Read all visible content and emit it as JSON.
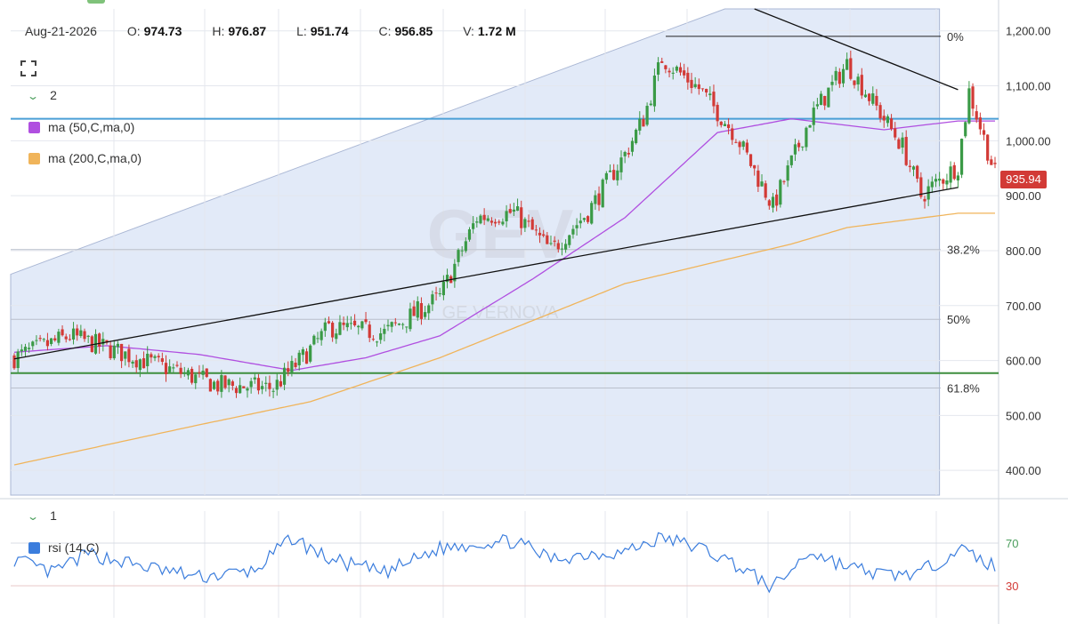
{
  "ohlc": {
    "date": "Aug-21-2026",
    "open_label": "O:",
    "open": "974.73",
    "high_label": "H:",
    "high": "976.87",
    "low_label": "L:",
    "low": "951.74",
    "close_label": "C:",
    "close": "956.85",
    "volume_label": "V:",
    "volume": "1.72 M"
  },
  "toolbar": {
    "fullscreen_icon": "expand-icon"
  },
  "main_pane": {
    "indicator_count": "2",
    "legend": [
      {
        "label": "ma (50,C,ma,0)",
        "color": "#b04fe0"
      },
      {
        "label": "ma (200,C,ma,0)",
        "color": "#f0b45a"
      }
    ],
    "watermark_symbol": "GEV",
    "watermark_name": "GE VERNOVA"
  },
  "rsi_pane": {
    "indicator_count": "1",
    "legend": [
      {
        "label": "rsi (14,C)",
        "color": "#3b7ddd"
      }
    ]
  },
  "current_price": "935.94",
  "colors": {
    "up": "#3a9a46",
    "down": "#d23a36",
    "ma50": "#b04fe0",
    "ma200": "#f0b45a",
    "rsi": "#3b7ddd",
    "resistance": "#4a9fd6",
    "support": "#3e8e3e"
  },
  "chart_data": {
    "type": "candlestick",
    "y_axis_ticks": [
      "1,200.00",
      "1,100.00",
      "1,000.00",
      "900.00",
      "800.00",
      "700.00",
      "600.00",
      "500.00",
      "400.00"
    ],
    "y_axis_values": [
      1200,
      1100,
      1000,
      900,
      800,
      700,
      600,
      500,
      400
    ],
    "ylim": [
      355,
      1240
    ],
    "fibonacci": [
      {
        "label": "0%",
        "value": 1190
      },
      {
        "label": "38.2%",
        "value": 802
      },
      {
        "label": "50%",
        "value": 675
      },
      {
        "label": "61.8%",
        "value": 550
      }
    ],
    "horizontal_levels": [
      {
        "name": "resistance",
        "value": 1040
      },
      {
        "name": "support",
        "value": 577
      }
    ],
    "trendlines": [
      {
        "name": "rising-support",
        "points": [
          [
            0,
            603
          ],
          [
            255,
            915
          ]
        ]
      },
      {
        "name": "falling-resistance",
        "points": [
          [
            200,
            1240
          ],
          [
            255,
            1093
          ]
        ]
      },
      {
        "name": "channel-upper",
        "points": [
          [
            0,
            757
          ],
          [
            192,
            1240
          ]
        ]
      }
    ],
    "ma50_anchors": [
      [
        0,
        615
      ],
      [
        25,
        627
      ],
      [
        50,
        611
      ],
      [
        75,
        582
      ],
      [
        95,
        605
      ],
      [
        115,
        645
      ],
      [
        140,
        748
      ],
      [
        165,
        860
      ],
      [
        190,
        1015
      ],
      [
        210,
        1040
      ],
      [
        235,
        1020
      ],
      [
        255,
        1036
      ]
    ],
    "ma200_anchors": [
      [
        0,
        410
      ],
      [
        50,
        483
      ],
      [
        80,
        525
      ],
      [
        115,
        605
      ],
      [
        165,
        740
      ],
      [
        210,
        812
      ],
      [
        225,
        842
      ],
      [
        255,
        868
      ]
    ],
    "close_anchors": [
      [
        0,
        605
      ],
      [
        15,
        645
      ],
      [
        35,
        600
      ],
      [
        55,
        555
      ],
      [
        70,
        550
      ],
      [
        80,
        620
      ],
      [
        85,
        660
      ],
      [
        100,
        650
      ],
      [
        115,
        715
      ],
      [
        125,
        860
      ],
      [
        135,
        870
      ],
      [
        145,
        800
      ],
      [
        155,
        870
      ],
      [
        165,
        975
      ],
      [
        170,
        1040
      ],
      [
        175,
        1150
      ],
      [
        185,
        1095
      ],
      [
        195,
        1010
      ],
      [
        205,
        880
      ],
      [
        215,
        1040
      ],
      [
        225,
        1140
      ],
      [
        235,
        1040
      ],
      [
        240,
        990
      ],
      [
        245,
        900
      ],
      [
        255,
        955
      ],
      [
        258,
        1090
      ],
      [
        265,
        940
      ]
    ],
    "rsi_ticks": [
      "70",
      "30"
    ],
    "rsi_ylim": [
      0,
      100
    ],
    "rsi_anchors": [
      [
        0,
        55
      ],
      [
        10,
        42
      ],
      [
        20,
        60
      ],
      [
        35,
        48
      ],
      [
        50,
        38
      ],
      [
        65,
        44
      ],
      [
        75,
        75
      ],
      [
        85,
        55
      ],
      [
        100,
        42
      ],
      [
        115,
        65
      ],
      [
        125,
        70
      ],
      [
        135,
        72
      ],
      [
        145,
        55
      ],
      [
        155,
        60
      ],
      [
        165,
        62
      ],
      [
        175,
        75
      ],
      [
        185,
        66
      ],
      [
        195,
        50
      ],
      [
        205,
        28
      ],
      [
        215,
        62
      ],
      [
        225,
        48
      ],
      [
        235,
        40
      ],
      [
        245,
        42
      ],
      [
        255,
        65
      ],
      [
        265,
        48
      ]
    ]
  }
}
